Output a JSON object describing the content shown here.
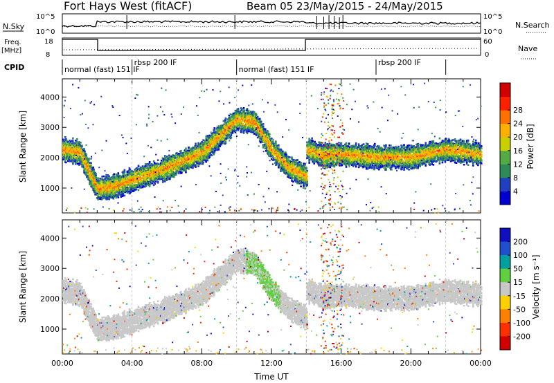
{
  "header": {
    "title": "Fort Hays West (fitACF)",
    "beam": "Beam 05 23/May/2015 - 24/May/2015"
  },
  "top_panels": {
    "nsky_label": "N.Sky",
    "nsky_ticks": [
      "10^5",
      "10^0"
    ],
    "nsearch_label": "N.Search",
    "nsearch_ticks": [
      "10^5",
      "10^0"
    ],
    "freq_label_1": "Freq.",
    "freq_label_2": "[MHz]",
    "freq_ticks": [
      "18",
      "8"
    ],
    "nave_label": "Nave",
    "nave_ticks": [
      "60",
      "0"
    ],
    "cpid_label": "CPID"
  },
  "cpid_segments": [
    {
      "label": "normal (fast) 151 IF",
      "start_h": 0,
      "end_h": 4
    },
    {
      "label": "rbsp 200 IF",
      "start_h": 4,
      "end_h": 10
    },
    {
      "label": "normal (fast) 151 IF",
      "start_h": 10,
      "end_h": 18
    },
    {
      "label": "rbsp 200 IF",
      "start_h": 18,
      "end_h": 22
    }
  ],
  "chart_data": [
    {
      "type": "heatmap",
      "panel": "power",
      "ylabel": "Slant Range [km]",
      "ytick_labels": [
        "1000",
        "2000",
        "3000",
        "4000"
      ],
      "ylim": [
        180,
        4600
      ],
      "xlim": [
        0,
        24
      ],
      "xtick_labels": [
        "00:00",
        "04:00",
        "08:00",
        "12:00",
        "16:00",
        "20:00",
        "00:00"
      ],
      "colorbar_label": "Power [dB]",
      "colorbar_ticks": [
        "4",
        "8",
        "12",
        "16",
        "20",
        "24",
        "28"
      ],
      "colorbar_colors": [
        "#0000d0",
        "#2040c0",
        "#2e8b57",
        "#55aa44",
        "#c8d000",
        "#ffb000",
        "#ff7000",
        "#ff2000",
        "#d00000"
      ],
      "echo_bands": [
        {
          "t": [
            0,
            1,
            2,
            3,
            4,
            6,
            8,
            10,
            11,
            12,
            13,
            14
          ],
          "range_km": [
            2300,
            2200,
            1000,
            1100,
            1300,
            1700,
            2200,
            3300,
            3200,
            2300,
            1700,
            1400
          ]
        },
        {
          "t": [
            14,
            15,
            16,
            18,
            20,
            22,
            24
          ],
          "range_km": [
            2300,
            2100,
            2150,
            2050,
            2050,
            2300,
            2150
          ]
        }
      ]
    },
    {
      "type": "heatmap",
      "panel": "velocity",
      "ylabel": "Slant Range [km]",
      "ytick_labels": [
        "1000",
        "2000",
        "3000",
        "4000"
      ],
      "ylim": [
        180,
        4600
      ],
      "xlim": [
        0,
        24
      ],
      "xtick_labels": [
        "00:00",
        "04:00",
        "08:00",
        "12:00",
        "16:00",
        "20:00",
        "00:00"
      ],
      "xlabel": "Time UT",
      "colorbar_label": "Velocity [m s⁻¹]",
      "colorbar_ticks": [
        "200",
        "100",
        "50",
        "15",
        "-15",
        "-50",
        "-100",
        "-200"
      ],
      "colorbar_colors": [
        "#1010c0",
        "#2050d0",
        "#00a0a0",
        "#60d040",
        "#c8c8c8",
        "#ffd000",
        "#ff8000",
        "#ff3000",
        "#d00000"
      ]
    }
  ],
  "colors": {
    "echo_gray": "#c8c8c8",
    "frame": "#000000"
  }
}
